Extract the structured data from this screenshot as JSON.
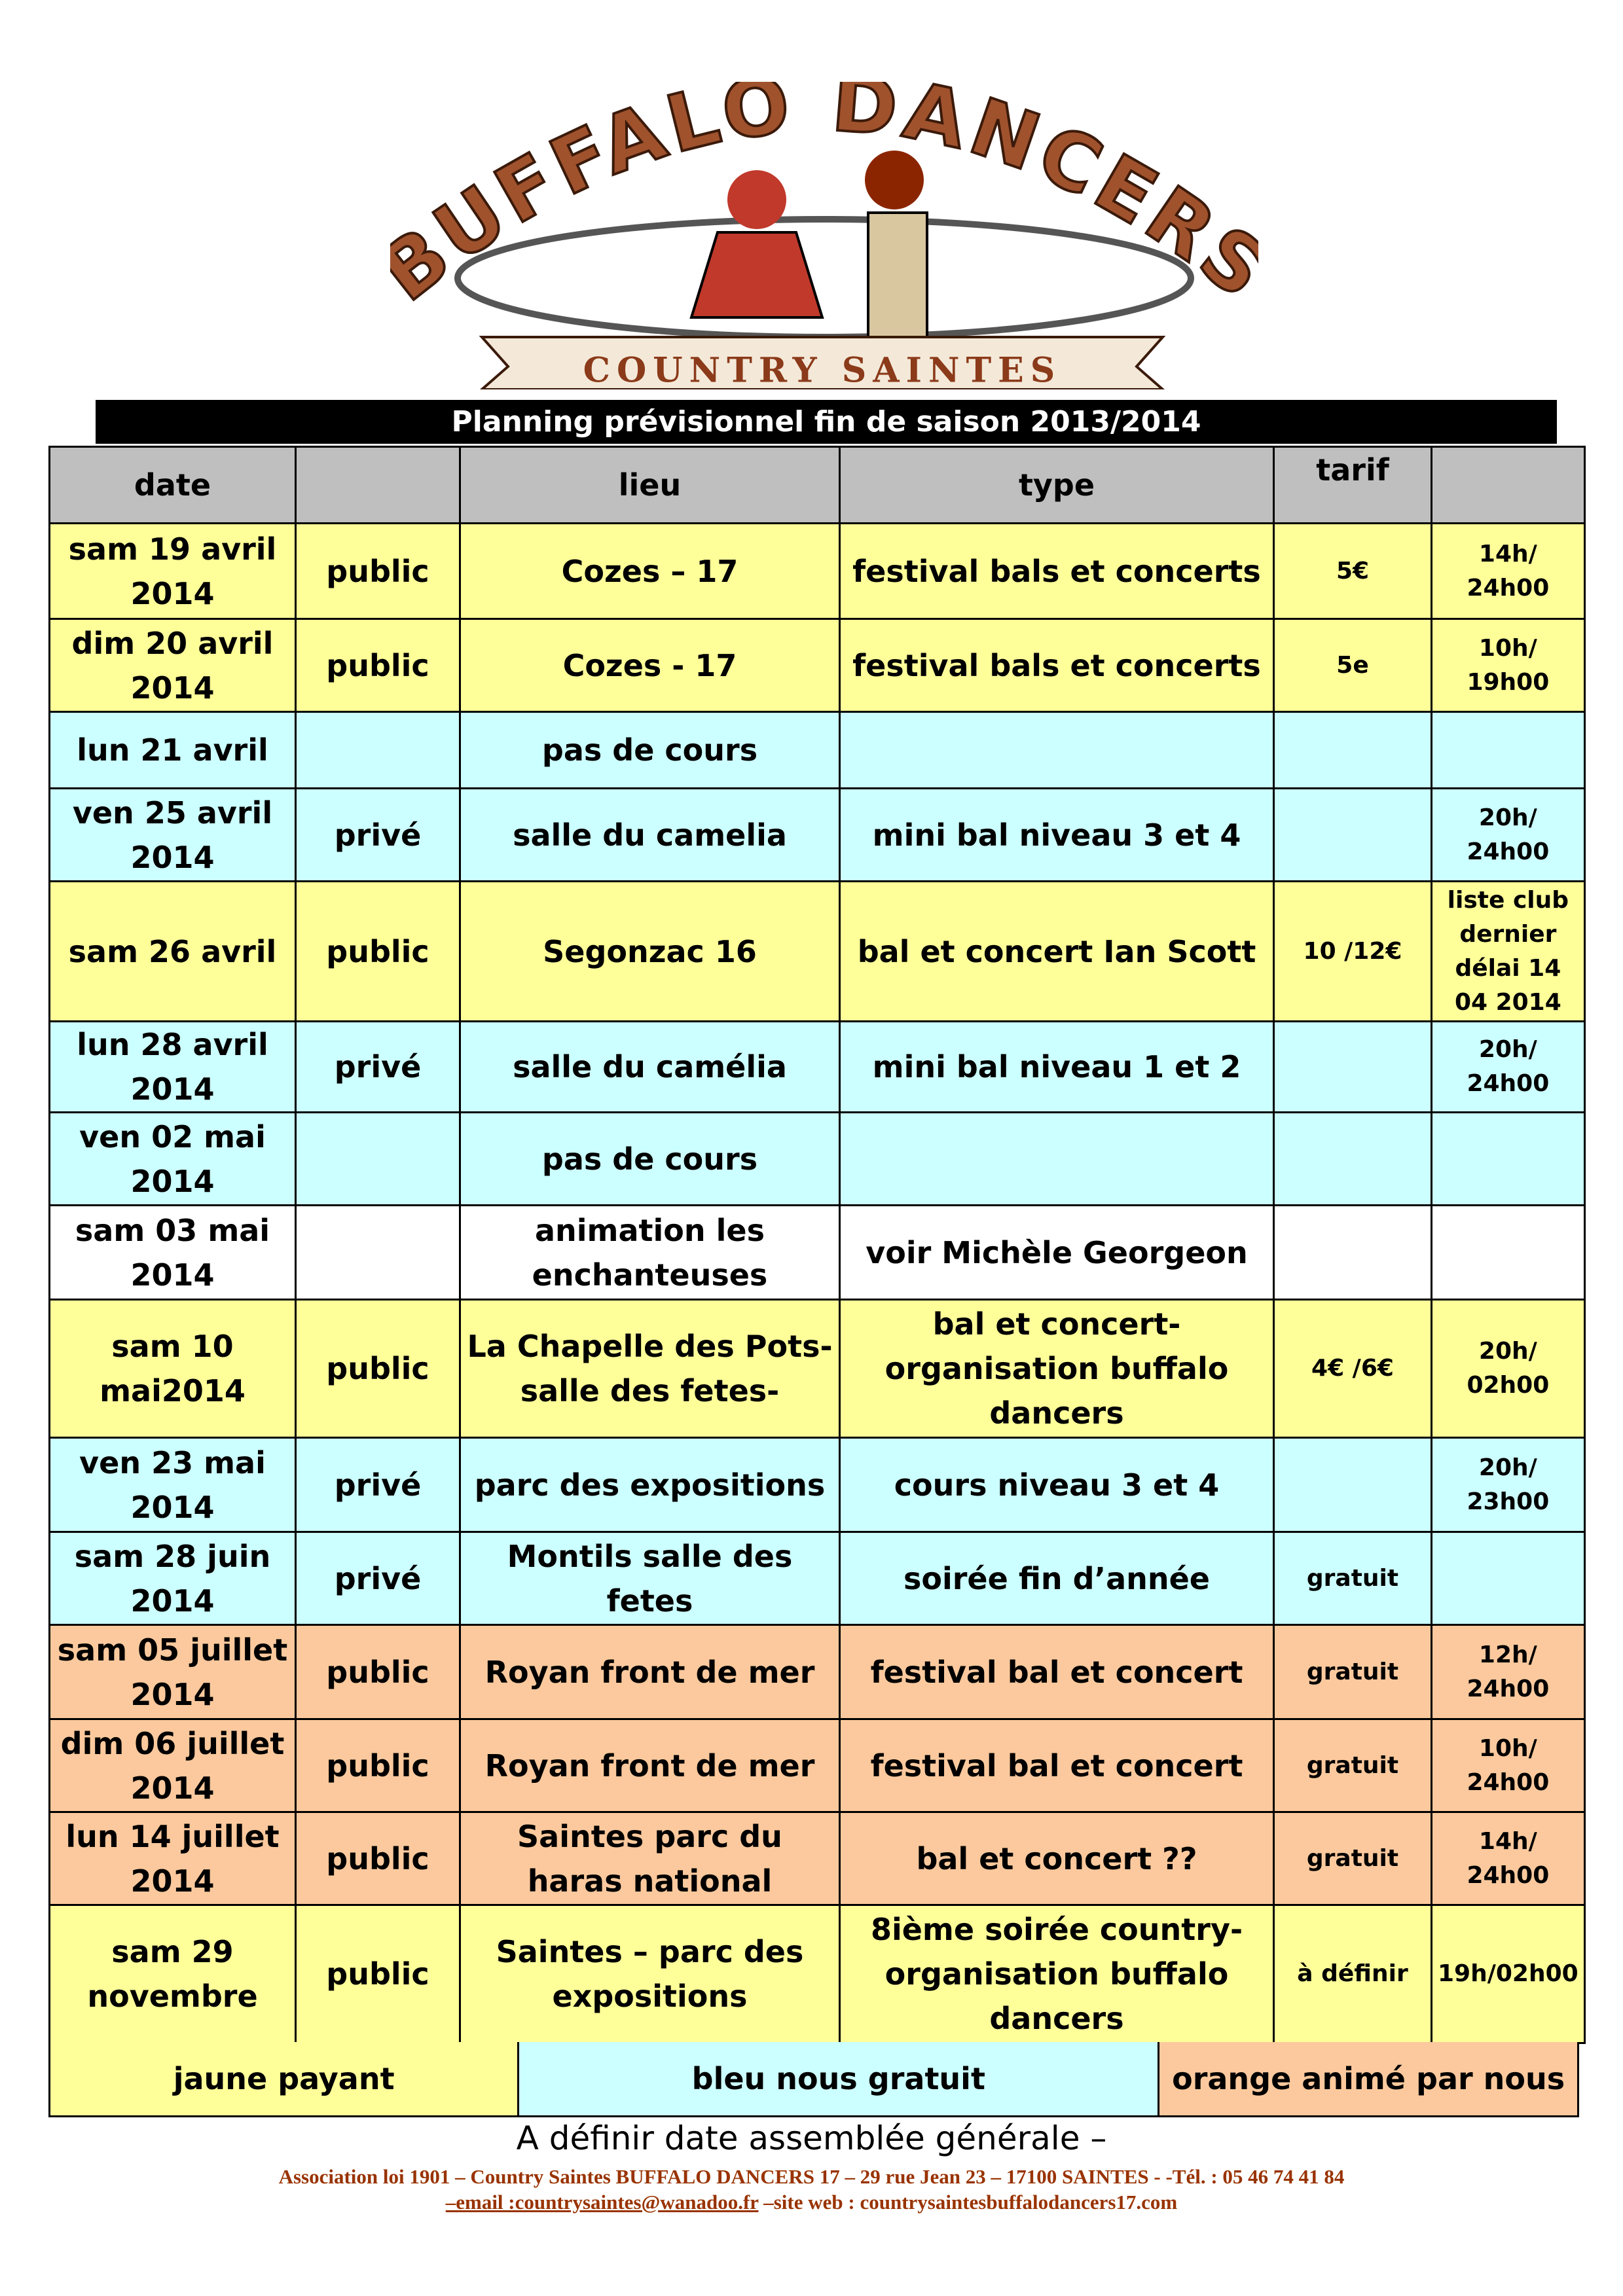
{
  "header": {
    "logo_title": "BUFFALO DANCERS",
    "logo_subtitle": "COUNTRY SAINTES"
  },
  "title": "Planning prévisionnel fin de saison 2013/2014",
  "table": {
    "header": [
      "date",
      null,
      "lieu",
      "type",
      "tarif",
      null
    ],
    "rows": [
      {
        "color": "#ffff99",
        "cells": [
          "sam 19 avril 2014",
          "public",
          "Cozes – 17",
          "festival bals et concerts",
          "5€",
          "14h/ 24h00"
        ]
      },
      {
        "color": "#ffff99",
        "cells": [
          "dim 20 avril 2014",
          "public",
          "Cozes - 17",
          "festival bals et concerts",
          "5e",
          "10h/ 19h00"
        ]
      },
      {
        "color": "#ccffff",
        "cells": [
          "lun 21 avril",
          null,
          "pas de cours",
          null,
          null,
          null
        ]
      },
      {
        "color": "#ccffff",
        "cells": [
          "ven 25 avril 2014",
          "privé",
          "salle du camelia",
          "mini bal niveau 3 et 4",
          null,
          "20h/ 24h00"
        ]
      },
      {
        "color": "#ffff99",
        "cells": [
          "sam 26 avril",
          "public",
          "Segonzac 16",
          "bal et concert Ian Scott",
          "10 /12€",
          "liste club dernier délai 14 04 2014"
        ]
      },
      {
        "color": "#ccffff",
        "cells": [
          "lun 28 avril 2014",
          "privé",
          "salle du camélia",
          "mini bal niveau 1 et 2",
          null,
          "20h/ 24h00"
        ]
      },
      {
        "color": "#ccffff",
        "cells": [
          "ven 02 mai 2014",
          null,
          "pas de cours",
          null,
          null,
          null
        ]
      },
      {
        "color": "#ffffff",
        "cells": [
          "sam 03 mai 2014",
          null,
          "animation les enchanteuses",
          "voir Michèle Georgeon",
          null,
          null
        ]
      },
      {
        "color": "#ffff99",
        "cells": [
          "sam 10 mai2014",
          "public",
          "La Chapelle des Pots- salle des fetes-",
          "bal et concert- organisation buffalo dancers",
          "4€ /6€",
          "20h/ 02h00"
        ]
      },
      {
        "color": "#ccffff",
        "cells": [
          "ven 23 mai 2014",
          "privé",
          "parc des expositions",
          "cours niveau 3 et 4",
          null,
          "20h/ 23h00"
        ]
      },
      {
        "color": "#ccffff",
        "cells": [
          "sam 28 juin 2014",
          "privé",
          "Montils salle des fetes",
          "soirée fin d’année",
          "gratuit",
          null
        ]
      },
      {
        "color": "#fbc99d",
        "cells": [
          "sam 05 juillet 2014",
          "public",
          "Royan front de mer",
          "festival bal et concert",
          "gratuit",
          "12h/ 24h00"
        ]
      },
      {
        "color": "#fbc99d",
        "cells": [
          "dim 06 juillet 2014",
          "public",
          "Royan front de mer",
          "festival bal et concert",
          "gratuit",
          "10h/ 24h00"
        ]
      },
      {
        "color": "#fbc99d",
        "cells": [
          "lun 14 juillet 2014",
          "public",
          "Saintes parc du haras national",
          "bal et concert ??",
          "gratuit",
          "14h/ 24h00"
        ]
      },
      {
        "color": "#ffff99",
        "cells": [
          "sam 29 novembre",
          "public",
          "Saintes – parc des expositions",
          "8ième soirée country- organisation buffalo dancers",
          "à définir",
          "19h/02h00"
        ]
      }
    ],
    "legend": [
      {
        "label": "jaune payant",
        "color": "#ffff99"
      },
      {
        "label": "bleu nous gratuit",
        "color": "#ccffff"
      },
      {
        "label": "orange animé par nous",
        "color": "#fbc99d"
      }
    ]
  },
  "footer": {
    "note": "A définir date assemblée générale –",
    "association": "Association loi 1901 – Country Saintes BUFFALO DANCERS 17 – 29 rue Jean 23 – 17100  SAINTES - -Tél. : 05 46 74 41 84",
    "email": "–email :countrysaintes@wanadoo.fr",
    "website": "–site web : countrysaintesbuffalodancers17.com"
  }
}
